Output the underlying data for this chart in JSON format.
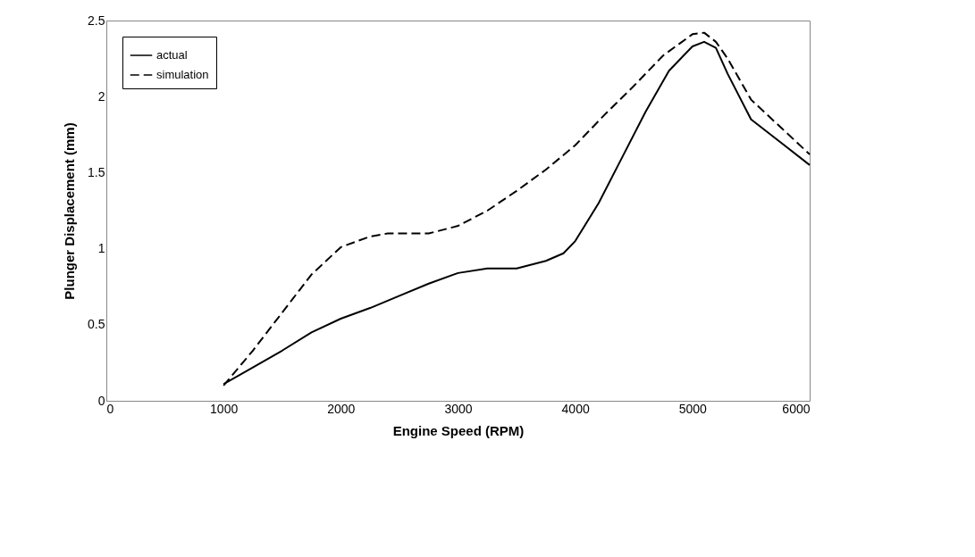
{
  "chart_data": {
    "type": "line",
    "xlabel": "Engine Speed (RPM)",
    "ylabel": "Plunger Displacement (mm)",
    "xlim": [
      0,
      6000
    ],
    "xticks": [
      0,
      1000,
      2000,
      3000,
      4000,
      5000,
      6000
    ],
    "ylim": [
      0,
      2.5
    ],
    "yticks": [
      0,
      0.5,
      1,
      1.5,
      2,
      2.5
    ],
    "grid": false,
    "legend": "top left",
    "series": [
      {
        "name": "actual",
        "color": "#000000",
        "line_style": "solid",
        "x": [
          1000,
          1250,
          1500,
          1750,
          2000,
          2250,
          2500,
          2750,
          3000,
          3250,
          3500,
          3750,
          3900,
          4000,
          4200,
          4400,
          4600,
          4800,
          5000,
          5100,
          5200,
          5300,
          5500,
          5750,
          6000
        ],
        "values": [
          0.11,
          0.22,
          0.33,
          0.45,
          0.54,
          0.61,
          0.69,
          0.77,
          0.84,
          0.87,
          0.87,
          0.92,
          0.97,
          1.05,
          1.3,
          1.6,
          1.9,
          2.17,
          2.33,
          2.36,
          2.32,
          2.15,
          1.85,
          1.7,
          1.55
        ]
      },
      {
        "name": "simulation",
        "color": "#000000",
        "line_style": "dashed",
        "x": [
          1000,
          1250,
          1500,
          1750,
          2000,
          2250,
          2400,
          2750,
          3000,
          3250,
          3500,
          3750,
          4000,
          4250,
          4500,
          4750,
          5000,
          5100,
          5200,
          5300,
          5500,
          5750,
          6000
        ],
        "values": [
          0.1,
          0.33,
          0.58,
          0.83,
          1.01,
          1.08,
          1.1,
          1.1,
          1.15,
          1.25,
          1.38,
          1.52,
          1.68,
          1.88,
          2.07,
          2.27,
          2.41,
          2.42,
          2.36,
          2.25,
          1.98,
          1.8,
          1.62
        ]
      }
    ]
  }
}
